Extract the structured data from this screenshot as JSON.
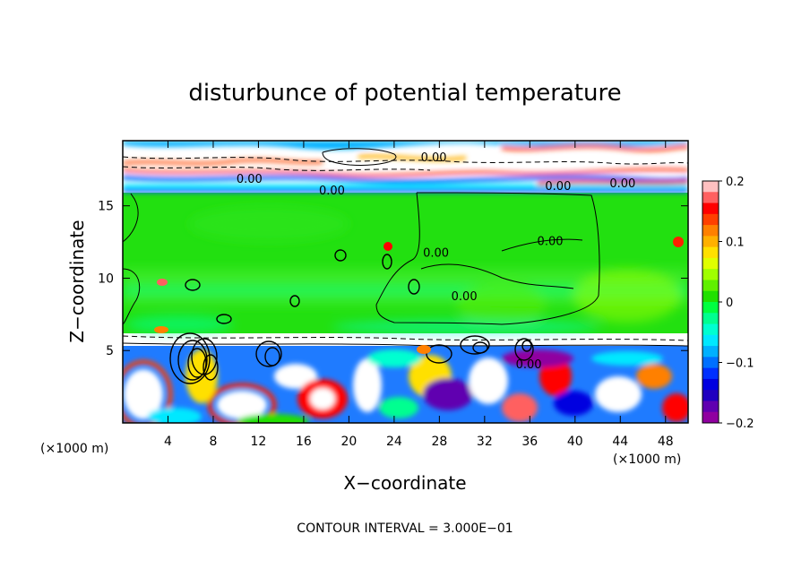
{
  "chart_data": {
    "type": "heatmap",
    "title": "disturbunce of potential temperature",
    "xlabel": "X−coordinate",
    "ylabel": "Z−coordinate",
    "x_unit_left": "(×1000 m)",
    "x_unit_right": "(×1000 m)",
    "footer": "CONTOUR INTERVAL = 3.000E−01",
    "xlim": [
      0,
      50
    ],
    "ylim": [
      0,
      19.5
    ],
    "x_ticks": [
      4,
      8,
      12,
      16,
      20,
      24,
      28,
      32,
      36,
      40,
      44,
      48
    ],
    "x_tick_labels": [
      "4",
      "8",
      "12",
      "16",
      "20",
      "24",
      "28",
      "32",
      "36",
      "40",
      "44",
      "48"
    ],
    "y_ticks": [
      5,
      10,
      15
    ],
    "y_tick_labels": [
      "5",
      "10",
      "15"
    ],
    "colorbar": {
      "range": [
        -0.2,
        0.2
      ],
      "ticks": [
        0.2,
        0.1,
        0,
        -0.1,
        -0.2
      ],
      "tick_labels": [
        "0.2",
        "0.1",
        "0",
        "−0.1",
        "−0.2"
      ],
      "colors": [
        "#ffc0c0",
        "#ff6060",
        "#ff0000",
        "#ff4000",
        "#ff8000",
        "#ffb000",
        "#ffe000",
        "#e0ff00",
        "#a0ff00",
        "#60f000",
        "#20e000",
        "#00ff40",
        "#00ff90",
        "#00ffd0",
        "#00e8ff",
        "#00b0ff",
        "#0070ff",
        "#0030ff",
        "#0000e0",
        "#2000c0",
        "#6000b0",
        "#9000a0"
      ]
    },
    "contour_labels": [
      {
        "text": "0.00",
        "x": 27.5,
        "y": 18.4
      },
      {
        "text": "0.00",
        "x": 11.2,
        "y": 16.9
      },
      {
        "text": "0.00",
        "x": 18.5,
        "y": 16.1
      },
      {
        "text": "0.00",
        "x": 38.5,
        "y": 16.4
      },
      {
        "text": "0.00",
        "x": 44.2,
        "y": 16.6
      },
      {
        "text": "0.00",
        "x": 37.8,
        "y": 12.6
      },
      {
        "text": "0.00",
        "x": 27.7,
        "y": 11.8
      },
      {
        "text": "0.00",
        "x": 30.2,
        "y": 8.8
      },
      {
        "text": "0.00",
        "x": 35.9,
        "y": 4.1
      }
    ]
  }
}
